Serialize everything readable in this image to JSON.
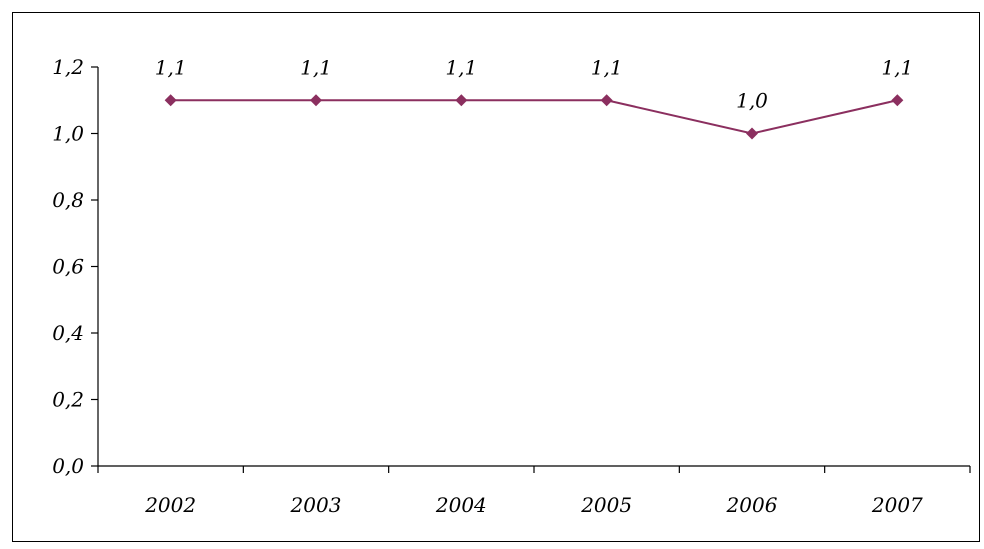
{
  "chart_data": {
    "type": "line",
    "title": "",
    "xlabel": "",
    "ylabel": "",
    "categories": [
      "2002",
      "2003",
      "2004",
      "2005",
      "2006",
      "2007"
    ],
    "series": [
      {
        "values": [
          1.1,
          1.1,
          1.1,
          1.1,
          1.0,
          1.1
        ],
        "value_labels": [
          "1,1",
          "1,1",
          "1,1",
          "1,1",
          "1,0",
          "1,1"
        ],
        "color": "#8B2F5F"
      }
    ],
    "ylim": [
      0,
      1.2
    ],
    "yticks": [
      0,
      0.2,
      0.4,
      0.6,
      0.8,
      1.0,
      1.2
    ],
    "ytick_labels": [
      "0,0",
      "0,2",
      "0,4",
      "0,6",
      "0,8",
      "1,0",
      "1,2"
    ],
    "grid": false,
    "legend": "none",
    "marker": "diamond"
  }
}
